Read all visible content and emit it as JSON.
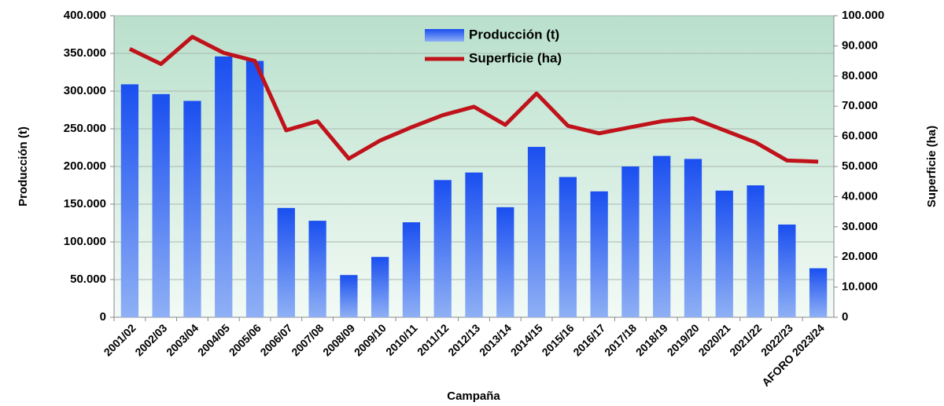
{
  "chart_data": {
    "type": "bar_line",
    "x_label": "Campaña",
    "y_label": "Producción (t)",
    "y2_label": "Superficie (ha)",
    "categories": [
      "2001/02",
      "2002/03",
      "2003/04",
      "2004/05",
      "2005/06",
      "2006/07",
      "2007/08",
      "2008/09",
      "2009/10",
      "2010/11",
      "2011/12",
      "2012/13",
      "2013/14",
      "2014/15",
      "2015/16",
      "2016/17",
      "2017/18",
      "2018/19",
      "2019/20",
      "2020/21",
      "2021/22",
      "2022/23",
      "AFORO 2023/24"
    ],
    "series": [
      {
        "name": "Producción (t)",
        "kind": "bar",
        "color": "#1a4ff0",
        "values": [
          309000,
          296000,
          287000,
          346000,
          340000,
          145000,
          128000,
          56000,
          80000,
          126000,
          182000,
          192000,
          146000,
          226000,
          186000,
          167000,
          200000,
          214000,
          210000,
          168000,
          175000,
          123000,
          65000
        ]
      },
      {
        "name": "Superficie (ha)",
        "kind": "line",
        "axis": "y2",
        "color": "#c0121a",
        "values": [
          89000,
          84000,
          93000,
          87700,
          85000,
          62000,
          65000,
          52600,
          58600,
          63000,
          67000,
          69800,
          63800,
          74200,
          63500,
          61000,
          63000,
          65000,
          66000,
          62000,
          58000,
          52000,
          51600
        ]
      }
    ],
    "ylim": [
      0,
      400000
    ],
    "yticks": [
      0,
      {
        "value": 50000,
        "label": "50.000"
      },
      {
        "value": 100000,
        "label": "100.000"
      },
      {
        "value": 150000,
        "label": "150.000"
      },
      {
        "value": 200000,
        "label": "200.000"
      },
      {
        "value": 250000,
        "label": "250.000"
      },
      {
        "value": 300000,
        "label": "300.000"
      },
      {
        "value": 350000,
        "label": "350.000"
      },
      {
        "value": 400000,
        "label": "400.000"
      }
    ],
    "y2lim": [
      0,
      100000
    ],
    "y2ticks": [
      0,
      {
        "value": 10000,
        "label": "10.000"
      },
      {
        "value": 20000,
        "label": "20.000"
      },
      {
        "value": 30000,
        "label": "30.000"
      },
      {
        "value": 40000,
        "label": "40.000"
      },
      {
        "value": 50000,
        "label": "50.000"
      },
      {
        "value": 60000,
        "label": "60.000"
      },
      {
        "value": 70000,
        "label": "70.000"
      },
      {
        "value": 80000,
        "label": "80.000"
      },
      {
        "value": 90000,
        "label": "90.000"
      },
      {
        "value": 100000,
        "label": "100.000"
      }
    ],
    "grid": true,
    "legend": "top"
  }
}
